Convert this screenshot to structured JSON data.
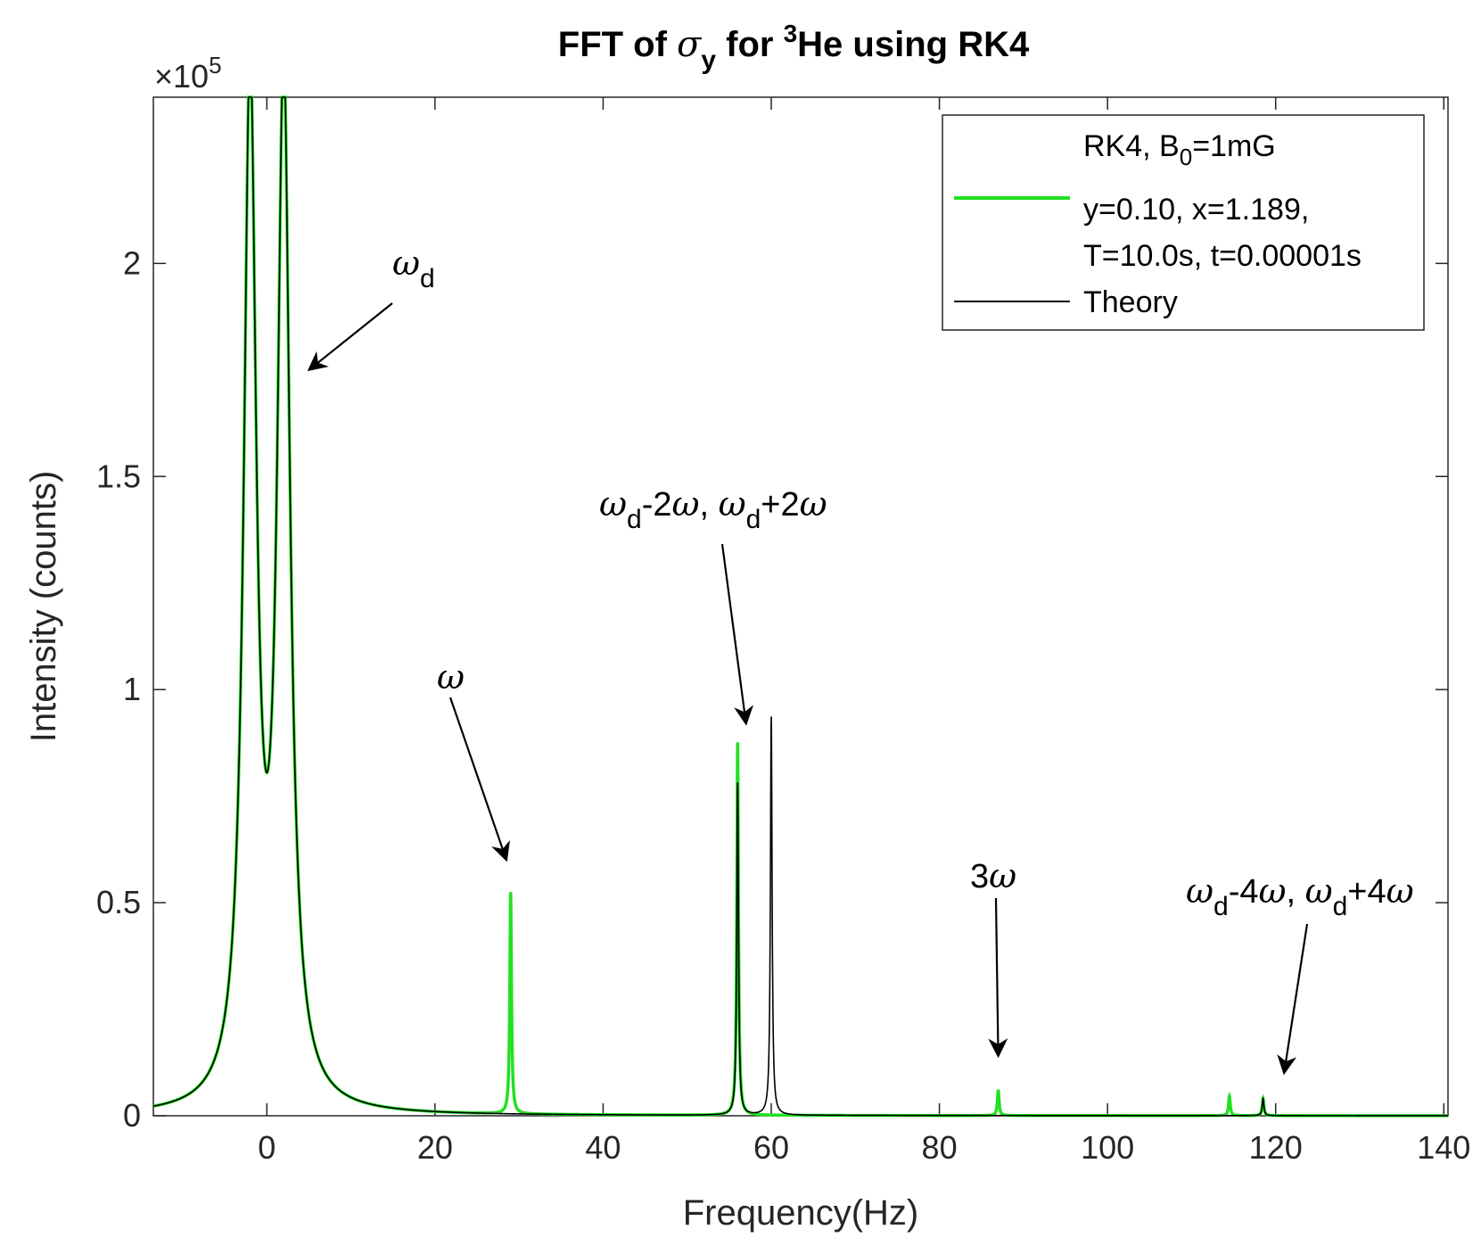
{
  "chart_data": {
    "type": "line",
    "title": {
      "prefix": "FFT of ",
      "sigma": "σ",
      "sigma_sub": "y",
      "mid": " for ",
      "iso": "3",
      "suffix": "He using RK4"
    },
    "xlabel": "Frequency(Hz)",
    "ylabel": "Intensity (counts)",
    "y_multiplier": {
      "base": "×10",
      "exp": "5"
    },
    "xlim": [
      -13.5,
      140.5
    ],
    "ylim": [
      0,
      2.39
    ],
    "x_ticks": [
      0,
      20,
      40,
      60,
      80,
      100,
      120,
      140
    ],
    "x_tick_labels": [
      "0",
      "20",
      "40",
      "60",
      "80",
      "100",
      "120",
      "140"
    ],
    "y_ticks": [
      0,
      0.5,
      1,
      1.5,
      2
    ],
    "y_tick_labels": [
      "0",
      "0.5",
      "1",
      "1.5",
      "2"
    ],
    "grid": false,
    "legend_position": "top-right",
    "series": [
      {
        "name": "RK4, B0=1mG y=0.10, x=1.189, T=10.0s, t=0.00001s",
        "color": "#22e022",
        "peaks": [
          {
            "x": -2.0,
            "y": 2.39
          },
          {
            "x": 2.0,
            "y": 2.39
          },
          {
            "x": 29.0,
            "y": 0.52
          },
          {
            "x": 56.0,
            "y": 0.875
          },
          {
            "x": 87.0,
            "y": 0.06
          },
          {
            "x": 114.5,
            "y": 0.045
          },
          {
            "x": 118.5,
            "y": 0.04
          }
        ]
      },
      {
        "name": "Theory",
        "color": "#000000",
        "peaks": [
          {
            "x": -2.0,
            "y": 2.39
          },
          {
            "x": 2.0,
            "y": 2.39
          },
          {
            "x": 56.0,
            "y": 0.78
          },
          {
            "x": 60.0,
            "y": 0.935
          },
          {
            "x": 118.5,
            "y": 0.04
          }
        ]
      }
    ],
    "legend": {
      "line1_prefix": "RK4, B",
      "line1_sub": "0",
      "line1_suffix": "=1mG",
      "line2": "y=0.10, x=1.189,",
      "line3": "T=10.0s, t=0.00001s",
      "line4": "Theory"
    },
    "annotations": {
      "wd": {
        "main": "ω",
        "sub": "d",
        "tip": [
          5.0,
          1.75
        ]
      },
      "w": {
        "main": "ω",
        "tip": [
          28.5,
          0.6
        ]
      },
      "wd2": {
        "w1": "ω",
        "sub1": "d",
        "mid1": "-2",
        "w2": "ω",
        "sep": ", ",
        "w3": "ω",
        "sub3": "d",
        "mid3": "+2",
        "w4": "ω",
        "tip": [
          57.0,
          0.92
        ]
      },
      "w3": {
        "num": "3",
        "w": "ω",
        "tip": [
          87.0,
          0.14
        ]
      },
      "wd4": {
        "w1": "ω",
        "sub1": "d",
        "mid1": "-4",
        "w2": "ω",
        "sep": ", ",
        "w3": "ω",
        "sub3": "d",
        "mid3": "+4",
        "w4": "ω",
        "tip": [
          121.0,
          0.1
        ]
      }
    }
  }
}
